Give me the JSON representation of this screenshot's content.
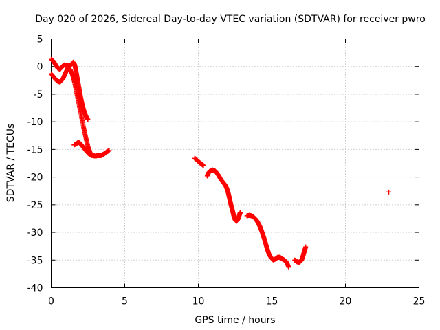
{
  "chart_data": {
    "type": "scatter",
    "title": "Day 020 of 2026, Sidereal Day-to-day VTEC variation (SDTVAR) for receiver pwro",
    "xlabel": "GPS time / hours",
    "ylabel": "SDTVAR / TECUs",
    "xlim": [
      0,
      25
    ],
    "ylim": [
      -40,
      5
    ],
    "xticks": [
      0,
      5,
      10,
      15,
      20,
      25
    ],
    "yticks": [
      5,
      0,
      -5,
      -10,
      -15,
      -20,
      -25,
      -30,
      -35,
      -40
    ],
    "grid": true,
    "marker": "+",
    "series": [
      {
        "name": "SDTVAR",
        "color": "#ff0000",
        "segments": [
          [
            [
              0.0,
              1.3
            ],
            [
              0.15,
              1.0
            ],
            [
              0.3,
              0.3
            ],
            [
              0.45,
              -0.3
            ],
            [
              0.6,
              -0.5
            ],
            [
              0.75,
              0.0
            ],
            [
              0.9,
              0.3
            ],
            [
              1.05,
              0.2
            ],
            [
              1.2,
              0.1
            ],
            [
              1.35,
              0.3
            ],
            [
              1.5,
              0.8
            ],
            [
              1.6,
              0.3
            ],
            [
              1.7,
              -1.0
            ],
            [
              1.8,
              -2.5
            ],
            [
              1.9,
              -4.0
            ],
            [
              2.0,
              -5.5
            ],
            [
              2.1,
              -6.8
            ],
            [
              2.2,
              -7.8
            ],
            [
              2.3,
              -8.6
            ],
            [
              2.4,
              -9.2
            ],
            [
              2.5,
              -9.6
            ]
          ],
          [
            [
              0.0,
              -1.3
            ],
            [
              0.2,
              -2.0
            ],
            [
              0.4,
              -2.6
            ],
            [
              0.6,
              -2.8
            ],
            [
              0.8,
              -2.2
            ],
            [
              1.0,
              -1.0
            ],
            [
              1.15,
              -0.2
            ],
            [
              1.3,
              -0.6
            ],
            [
              1.45,
              -1.5
            ],
            [
              1.6,
              -3.0
            ],
            [
              1.75,
              -5.0
            ],
            [
              1.9,
              -7.0
            ],
            [
              2.05,
              -9.0
            ],
            [
              2.2,
              -11.0
            ],
            [
              2.35,
              -12.8
            ],
            [
              2.5,
              -14.5
            ],
            [
              2.65,
              -15.6
            ],
            [
              2.8,
              -16.1
            ],
            [
              3.0,
              -16.2
            ],
            [
              3.2,
              -16.1
            ],
            [
              3.4,
              -16.1
            ],
            [
              3.6,
              -15.8
            ],
            [
              3.8,
              -15.4
            ],
            [
              3.95,
              -15.2
            ]
          ],
          [
            [
              1.55,
              -14.2
            ],
            [
              1.7,
              -14.0
            ],
            [
              1.85,
              -13.7
            ],
            [
              2.0,
              -14.0
            ],
            [
              2.15,
              -14.5
            ],
            [
              2.3,
              -15.0
            ],
            [
              2.45,
              -15.5
            ],
            [
              2.6,
              -15.9
            ],
            [
              2.75,
              -16.1
            ]
          ],
          [
            [
              9.75,
              -16.6
            ],
            [
              9.9,
              -16.9
            ],
            [
              10.05,
              -17.3
            ],
            [
              10.2,
              -17.6
            ],
            [
              10.35,
              -17.9
            ]
          ],
          [
            [
              10.6,
              -19.8
            ],
            [
              10.7,
              -19.2
            ],
            [
              10.8,
              -18.9
            ],
            [
              10.95,
              -18.7
            ],
            [
              11.1,
              -18.8
            ],
            [
              11.25,
              -19.2
            ],
            [
              11.4,
              -19.8
            ],
            [
              11.55,
              -20.5
            ],
            [
              11.7,
              -21.0
            ],
            [
              11.85,
              -21.5
            ],
            [
              12.0,
              -22.5
            ],
            [
              12.1,
              -23.6
            ],
            [
              12.2,
              -24.8
            ],
            [
              12.3,
              -25.8
            ],
            [
              12.4,
              -26.9
            ],
            [
              12.5,
              -27.7
            ],
            [
              12.6,
              -28.0
            ],
            [
              12.7,
              -27.6
            ],
            [
              12.8,
              -26.8
            ],
            [
              12.85,
              -26.4
            ]
          ],
          [
            [
              13.3,
              -27.0
            ],
            [
              13.5,
              -26.9
            ],
            [
              13.7,
              -27.1
            ],
            [
              13.9,
              -27.6
            ],
            [
              14.05,
              -28.2
            ],
            [
              14.2,
              -29.0
            ],
            [
              14.35,
              -30.1
            ],
            [
              14.5,
              -31.3
            ],
            [
              14.65,
              -32.7
            ],
            [
              14.8,
              -33.9
            ],
            [
              14.95,
              -34.6
            ],
            [
              15.1,
              -35.0
            ],
            [
              15.25,
              -34.8
            ],
            [
              15.4,
              -34.5
            ],
            [
              15.55,
              -34.5
            ],
            [
              15.7,
              -34.8
            ],
            [
              15.85,
              -35.0
            ],
            [
              16.0,
              -35.4
            ],
            [
              16.15,
              -36.3
            ]
          ],
          [
            [
              16.55,
              -35.0
            ],
            [
              16.7,
              -35.3
            ],
            [
              16.85,
              -35.4
            ],
            [
              17.0,
              -35.1
            ],
            [
              17.1,
              -34.4
            ],
            [
              17.2,
              -33.5
            ],
            [
              17.3,
              -32.6
            ]
          ],
          [
            [
              22.95,
              -22.7
            ]
          ]
        ]
      }
    ]
  }
}
